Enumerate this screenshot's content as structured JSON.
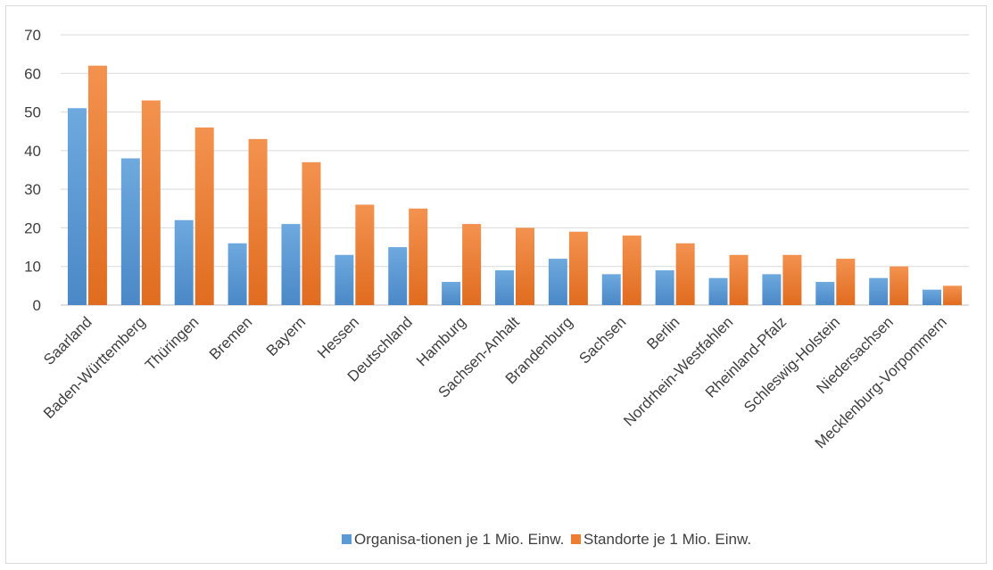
{
  "chart_data": {
    "type": "bar",
    "title": "",
    "xlabel": "",
    "ylabel": "",
    "ylim": [
      0,
      70
    ],
    "yticks": [
      0,
      10,
      20,
      30,
      40,
      50,
      60,
      70
    ],
    "grid": true,
    "legend_position": "bottom",
    "categories": [
      "Saarland",
      "Baden-Württemberg",
      "Thüringen",
      "Bremen",
      "Bayern",
      "Hessen",
      "Deutschland",
      "Hamburg",
      "Sachsen-Anhalt",
      "Brandenburg",
      "Sachsen",
      "Berlin",
      "Nordrhein-Westfahlen",
      "Rheinland-Pfalz",
      "Schleswig-Holstein",
      "Niedersachsen",
      "Mecklenburg-Vorpommern"
    ],
    "series": [
      {
        "name": "Organisa-tionen je 1 Mio. Einw.",
        "color": "#5b9bd5",
        "values": [
          51,
          38,
          22,
          16,
          21,
          13,
          15,
          6,
          9,
          12,
          8,
          9,
          7,
          8,
          6,
          7,
          4
        ]
      },
      {
        "name": "Standorte je 1 Mio. Einw.",
        "color": "#ed7d31",
        "values": [
          62,
          53,
          46,
          43,
          37,
          26,
          25,
          21,
          20,
          19,
          18,
          16,
          13,
          13,
          12,
          10,
          5
        ]
      }
    ]
  }
}
